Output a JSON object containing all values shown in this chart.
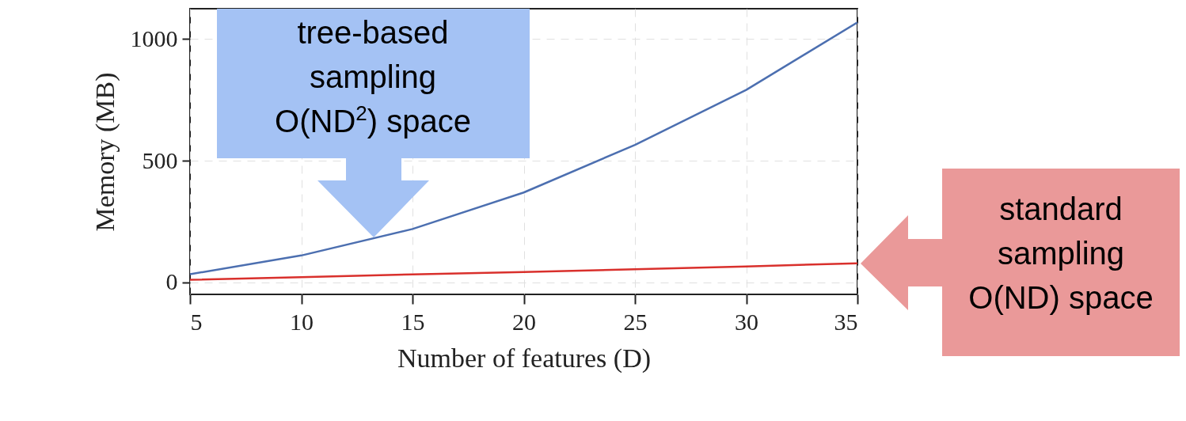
{
  "chart_data": {
    "type": "line",
    "xlabel": "Number of features (D)",
    "ylabel": "Memory (MB)",
    "x": [
      5,
      10,
      15,
      20,
      25,
      30,
      35
    ],
    "series": [
      {
        "color": "#4c6fb0",
        "values": [
          33,
          110,
          219,
          369,
          565,
          791,
          1069
        ]
      },
      {
        "color": "#d9302c",
        "values": [
          10,
          21,
          32,
          42,
          53,
          65,
          78
        ]
      }
    ],
    "xlim": [
      5,
      35
    ],
    "xticks": [
      5,
      10,
      15,
      20,
      25,
      30,
      35
    ],
    "ylim": [
      -50,
      1125
    ],
    "yticks": [
      0,
      500,
      1000
    ],
    "grid": true,
    "annotations": [
      "tree-based\nsampling\nO(ND$^{2}$) space",
      "standard\nsampling\nO(ND) space"
    ]
  }
}
